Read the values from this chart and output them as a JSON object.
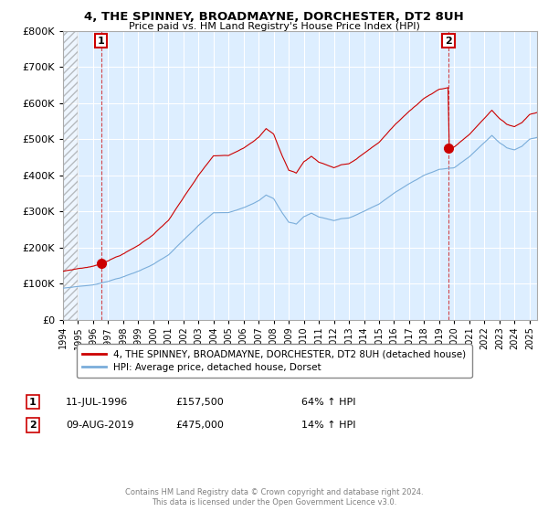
{
  "title": "4, THE SPINNEY, BROADMAYNE, DORCHESTER, DT2 8UH",
  "subtitle": "Price paid vs. HM Land Registry's House Price Index (HPI)",
  "legend_property": "4, THE SPINNEY, BROADMAYNE, DORCHESTER, DT2 8UH (detached house)",
  "legend_hpi": "HPI: Average price, detached house, Dorset",
  "footer": "Contains HM Land Registry data © Crown copyright and database right 2024.\nThis data is licensed under the Open Government Licence v3.0.",
  "property_color": "#cc0000",
  "hpi_color": "#7aadda",
  "bg_color": "#ddeeff",
  "ylim": [
    0,
    800000
  ],
  "xlim_start": 1994.0,
  "xlim_end": 2025.5,
  "hatch_end": 1995.0,
  "sale1_x": 1996.53,
  "sale1_y": 157500,
  "sale2_x": 2019.61,
  "sale2_y": 475000,
  "ann1_date": "11-JUL-1996",
  "ann1_price": "£157,500",
  "ann1_hpi": "64% ↑ HPI",
  "ann2_date": "09-AUG-2019",
  "ann2_price": "£475,000",
  "ann2_hpi": "14% ↑ HPI"
}
